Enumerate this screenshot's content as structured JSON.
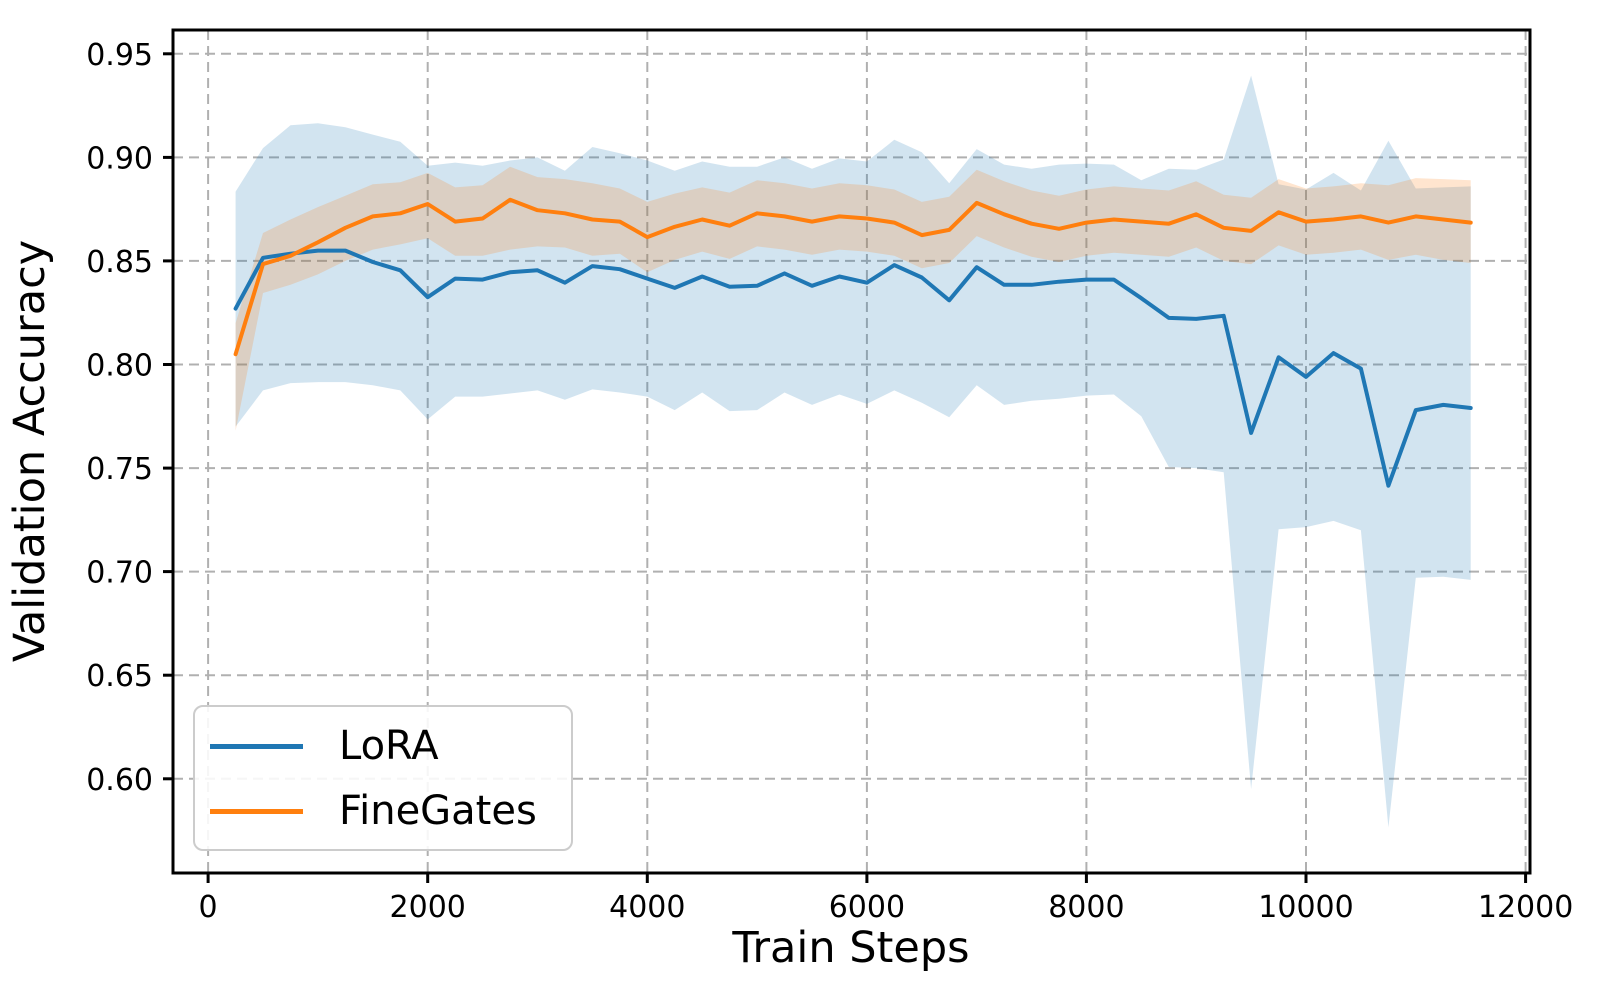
{
  "chart_data": {
    "type": "line",
    "title": "",
    "xlabel": "Train Steps",
    "ylabel": "Validation Accuracy",
    "grid": true,
    "grid_color": "#b0b0b0",
    "background": "#ffffff",
    "legend_position": "lower left",
    "band_opacity": 0.2,
    "xlim": [
      -320,
      12040
    ],
    "ylim": [
      0.5545,
      0.9615
    ],
    "xticks": [
      0,
      2000,
      4000,
      6000,
      8000,
      10000,
      12000
    ],
    "yticks": [
      0.6,
      0.65,
      0.7,
      0.75,
      0.8,
      0.85,
      0.9,
      0.95
    ],
    "steps": [
      250,
      500,
      750,
      1000,
      1250,
      1500,
      1750,
      2000,
      2250,
      2500,
      2750,
      3000,
      3250,
      3500,
      3750,
      4000,
      4250,
      4500,
      4750,
      5000,
      5250,
      5500,
      5750,
      6000,
      6250,
      6500,
      6750,
      7000,
      7250,
      7500,
      7750,
      8000,
      8250,
      8500,
      8750,
      9000,
      9250,
      9500,
      9750,
      10000,
      10250,
      10500,
      10750,
      11000,
      11250,
      11500
    ],
    "series": [
      {
        "name": "LoRA",
        "color": "#1f77b4",
        "mean": [
          0.827,
          0.8515,
          0.8535,
          0.855,
          0.855,
          0.8495,
          0.8455,
          0.8325,
          0.8415,
          0.841,
          0.8445,
          0.8455,
          0.8395,
          0.8475,
          0.846,
          0.8415,
          0.837,
          0.8425,
          0.8375,
          0.838,
          0.844,
          0.838,
          0.8425,
          0.8395,
          0.848,
          0.842,
          0.831,
          0.847,
          0.8385,
          0.8385,
          0.84,
          0.841,
          0.841,
          0.832,
          0.8225,
          0.822,
          0.8235,
          0.767,
          0.8035,
          0.794,
          0.8055,
          0.798,
          0.7415,
          0.778,
          0.7805,
          0.779
        ],
        "lower": [
          0.77,
          0.7875,
          0.791,
          0.7915,
          0.7915,
          0.79,
          0.7875,
          0.7735,
          0.7845,
          0.7845,
          0.786,
          0.7875,
          0.783,
          0.788,
          0.7865,
          0.7845,
          0.778,
          0.7865,
          0.7775,
          0.778,
          0.7865,
          0.7805,
          0.7855,
          0.781,
          0.7875,
          0.7815,
          0.7745,
          0.79,
          0.7805,
          0.7825,
          0.7835,
          0.785,
          0.7855,
          0.775,
          0.7505,
          0.75,
          0.748,
          0.595,
          0.7205,
          0.7215,
          0.7245,
          0.72,
          0.5765,
          0.697,
          0.6975,
          0.696
        ],
        "upper": [
          0.8835,
          0.9045,
          0.9155,
          0.9165,
          0.9145,
          0.911,
          0.9075,
          0.896,
          0.8975,
          0.896,
          0.8985,
          0.9,
          0.8935,
          0.905,
          0.902,
          0.8985,
          0.8935,
          0.898,
          0.8955,
          0.8955,
          0.9,
          0.8945,
          0.8995,
          0.898,
          0.9085,
          0.9025,
          0.8875,
          0.904,
          0.8965,
          0.8945,
          0.8965,
          0.897,
          0.8965,
          0.889,
          0.8945,
          0.894,
          0.899,
          0.9395,
          0.887,
          0.8845,
          0.8925,
          0.884,
          0.908,
          0.885,
          0.8855,
          0.886
        ]
      },
      {
        "name": "FineGates",
        "color": "#ff7f0e",
        "mean": [
          0.805,
          0.8485,
          0.8525,
          0.859,
          0.866,
          0.8715,
          0.873,
          0.8775,
          0.869,
          0.8705,
          0.8795,
          0.8745,
          0.873,
          0.87,
          0.869,
          0.8615,
          0.8665,
          0.87,
          0.867,
          0.873,
          0.8715,
          0.869,
          0.8715,
          0.8705,
          0.8685,
          0.8625,
          0.865,
          0.878,
          0.8725,
          0.868,
          0.8655,
          0.8685,
          0.87,
          0.869,
          0.868,
          0.8725,
          0.866,
          0.8645,
          0.8735,
          0.869,
          0.87,
          0.8715,
          0.8685,
          0.8715,
          0.87,
          0.8685
        ],
        "lower": [
          0.768,
          0.8345,
          0.8385,
          0.8435,
          0.85,
          0.8555,
          0.858,
          0.861,
          0.8525,
          0.8525,
          0.8555,
          0.857,
          0.8565,
          0.8525,
          0.8535,
          0.8445,
          0.8505,
          0.8545,
          0.851,
          0.857,
          0.8555,
          0.853,
          0.8555,
          0.8545,
          0.8525,
          0.8465,
          0.849,
          0.862,
          0.8565,
          0.852,
          0.8495,
          0.8525,
          0.854,
          0.853,
          0.852,
          0.8565,
          0.85,
          0.8485,
          0.8575,
          0.853,
          0.854,
          0.8555,
          0.8505,
          0.853,
          0.8505,
          0.849
        ],
        "upper": [
          0.82,
          0.8635,
          0.87,
          0.876,
          0.8815,
          0.887,
          0.888,
          0.8925,
          0.8855,
          0.8865,
          0.8955,
          0.8905,
          0.8895,
          0.8875,
          0.885,
          0.8785,
          0.8825,
          0.8855,
          0.883,
          0.889,
          0.8875,
          0.885,
          0.8875,
          0.8865,
          0.8845,
          0.8785,
          0.881,
          0.894,
          0.8885,
          0.884,
          0.8815,
          0.8845,
          0.886,
          0.885,
          0.884,
          0.8885,
          0.882,
          0.8805,
          0.8895,
          0.885,
          0.886,
          0.8875,
          0.8865,
          0.89,
          0.8895,
          0.889
        ]
      }
    ]
  }
}
